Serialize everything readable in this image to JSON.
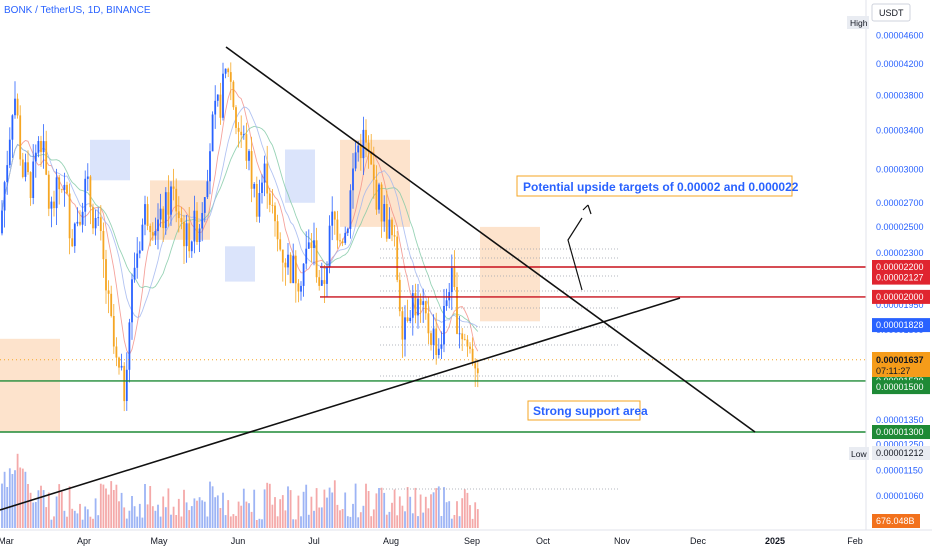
{
  "header": {
    "symbol_line": "BONK / TetherUS, 1D, BINANCE",
    "currency": "USDT"
  },
  "chart_data": {
    "type": "candlestick",
    "price_axis_ticks": [
      "0.00004600",
      "0.00004200",
      "0.00003800",
      "0.00003400",
      "0.00003000",
      "0.00002700",
      "0.00002500",
      "0.00002300",
      "0.00002100",
      "0.00001950",
      "0.00001800",
      "0.00001650",
      "0.00001500",
      "0.00001350",
      "0.00001250",
      "0.00001150",
      "0.00001060"
    ],
    "time_axis_ticks": [
      "Mar",
      "Apr",
      "May",
      "Jun",
      "Jul",
      "Aug",
      "Sep",
      "Oct",
      "Nov",
      "Dec",
      "2025",
      "Feb"
    ],
    "bold_time_ticks": [
      "2025"
    ],
    "close_price": 1.637e-05,
    "countdown": "07:11:27",
    "volume_label": "676.048B",
    "high_label": "High",
    "low_label": "Low",
    "low_value": "0.00001212",
    "price_badges": [
      {
        "text": "0.00002200",
        "color": "#e0242f"
      },
      {
        "text": "0.00002127",
        "color": "#e0242f"
      },
      {
        "text": "0.00002000",
        "color": "#e0242f"
      },
      {
        "text": "0.00001828",
        "color": "#2962ff"
      },
      {
        "text": "0.00001530",
        "color": "#1e8a36"
      },
      {
        "text": "0.00001500",
        "color": "#1e8a36"
      },
      {
        "text": "0.00001300",
        "color": "#1e8a36"
      }
    ],
    "horizontal_levels": [
      {
        "price": 2.2e-05,
        "color": "#c8101c"
      },
      {
        "price": 2e-05,
        "color": "#c8101c"
      },
      {
        "price": 1.53e-05,
        "color": "#1e8a36"
      },
      {
        "price": 1.3e-05,
        "color": "#1e8a36"
      }
    ],
    "annotations": {
      "targets": "Potential upside targets of 0.00002 and 0.000022",
      "support": "Strong support area"
    },
    "colors": {
      "up": "#2962ff",
      "down": "#f5a623",
      "close_badge": "#f59c1a",
      "volume_up": "#9db4f5",
      "volume_down": "#f4a9a9"
    }
  }
}
